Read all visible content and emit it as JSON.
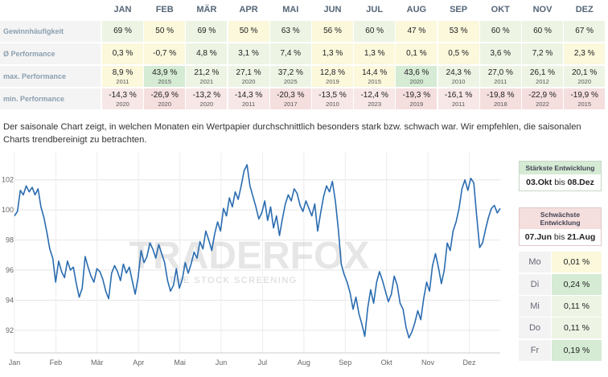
{
  "table": {
    "months": [
      "JAN",
      "FEB",
      "MÄR",
      "APR",
      "MAI",
      "JUN",
      "JUL",
      "AUG",
      "SEP",
      "OKT",
      "NOV",
      "DEZ"
    ],
    "rows": [
      {
        "label": "Gewinnhäufigkeit",
        "cells": [
          {
            "value": "69 %",
            "color": "#edf4e4"
          },
          {
            "value": "50 %",
            "color": "#fbf8dc"
          },
          {
            "value": "69 %",
            "color": "#edf4e4"
          },
          {
            "value": "50 %",
            "color": "#fbf8dc"
          },
          {
            "value": "63 %",
            "color": "#edf4e4"
          },
          {
            "value": "56 %",
            "color": "#fbf8dc"
          },
          {
            "value": "60 %",
            "color": "#edf4e4"
          },
          {
            "value": "47 %",
            "color": "#fbf8dc"
          },
          {
            "value": "53 %",
            "color": "#fbf8dc"
          },
          {
            "value": "60 %",
            "color": "#edf4e4"
          },
          {
            "value": "60 %",
            "color": "#edf4e4"
          },
          {
            "value": "67 %",
            "color": "#edf4e4"
          }
        ]
      },
      {
        "label": "Ø Performance",
        "cells": [
          {
            "value": "0,3 %",
            "color": "#fbf8dc"
          },
          {
            "value": "-0,7 %",
            "color": "#fbf8dc"
          },
          {
            "value": "4,8 %",
            "color": "#edf4e4"
          },
          {
            "value": "3,1 %",
            "color": "#edf4e4"
          },
          {
            "value": "7,4 %",
            "color": "#edf4e4"
          },
          {
            "value": "1,3 %",
            "color": "#fbf8dc"
          },
          {
            "value": "1,3 %",
            "color": "#fbf8dc"
          },
          {
            "value": "0,1 %",
            "color": "#fbf8dc"
          },
          {
            "value": "0,5 %",
            "color": "#fbf8dc"
          },
          {
            "value": "3,6 %",
            "color": "#edf4e4"
          },
          {
            "value": "7,2 %",
            "color": "#edf4e4"
          },
          {
            "value": "2,3 %",
            "color": "#fbf8dc"
          }
        ]
      },
      {
        "label": "max. Performance",
        "cells": [
          {
            "value": "8,9 %",
            "year": "2011",
            "color": "#fbf8dc"
          },
          {
            "value": "43,9 %",
            "year": "2015",
            "color": "#d5ebd4"
          },
          {
            "value": "21,2 %",
            "year": "2021",
            "color": "#edf4e4"
          },
          {
            "value": "27,1 %",
            "year": "2020",
            "color": "#edf4e4"
          },
          {
            "value": "37,2 %",
            "year": "2025",
            "color": "#edf4e4"
          },
          {
            "value": "12,8 %",
            "year": "2019",
            "color": "#fbf8dc"
          },
          {
            "value": "14,4 %",
            "year": "2015",
            "color": "#fbf8dc"
          },
          {
            "value": "43,6 %",
            "year": "2020",
            "color": "#d5ebd4"
          },
          {
            "value": "24,3 %",
            "year": "2010",
            "color": "#edf4e4"
          },
          {
            "value": "27,0 %",
            "year": "2011",
            "color": "#edf4e4"
          },
          {
            "value": "26,1 %",
            "year": "2012",
            "color": "#edf4e4"
          },
          {
            "value": "20,1 %",
            "year": "2020",
            "color": "#edf4e4"
          }
        ]
      },
      {
        "label": "min. Performance",
        "cells": [
          {
            "value": "-14,3 %",
            "year": "2020",
            "color": "#f7e7e7"
          },
          {
            "value": "-26,9 %",
            "year": "2020",
            "color": "#f5dede"
          },
          {
            "value": "-13,2 %",
            "year": "2020",
            "color": "#f7e7e7"
          },
          {
            "value": "-14,3 %",
            "year": "2011",
            "color": "#f7e7e7"
          },
          {
            "value": "-20,3 %",
            "year": "2017",
            "color": "#f5dede"
          },
          {
            "value": "-13,5 %",
            "year": "2010",
            "color": "#f7e7e7"
          },
          {
            "value": "-12,4 %",
            "year": "2023",
            "color": "#f7e7e7"
          },
          {
            "value": "-19,3 %",
            "year": "2019",
            "color": "#f5dede"
          },
          {
            "value": "-16,1 %",
            "year": "2011",
            "color": "#f7e7e7"
          },
          {
            "value": "-19,8 %",
            "year": "2018",
            "color": "#f5dede"
          },
          {
            "value": "-22,9 %",
            "year": "2022",
            "color": "#f5dede"
          },
          {
            "value": "-19,9 %",
            "year": "2015",
            "color": "#f5dede"
          }
        ]
      }
    ]
  },
  "description": "Der saisonale Chart zeigt, in welchen Monaten ein Wertpapier durchschnittlich besonders stark bzw. schwach war. Wir empfehlen, die saisonalen Charts trendbereinigt zu betrachten.",
  "watermark": {
    "brand": "TRADERFOX",
    "tagline": "THE STOCK SCREENING"
  },
  "strongest": {
    "title": "Stärkste Entwicklung",
    "from": "03.Okt",
    "sep": "bis",
    "to": "08.Dez",
    "header_color": "#d5ebd4"
  },
  "weakest": {
    "title": "Schwächste Entwicklung",
    "from": "07.Jun",
    "sep": "bis",
    "to": "21.Aug",
    "header_color": "#f5dede"
  },
  "weekdays": [
    {
      "name": "Mo",
      "value": "0,01 %",
      "color": "#fbf8dc"
    },
    {
      "name": "Di",
      "value": "0,24 %",
      "color": "#d5ebd4"
    },
    {
      "name": "Mi",
      "value": "0,11 %",
      "color": "#edf4e4"
    },
    {
      "name": "Do",
      "value": "0,11 %",
      "color": "#edf4e4"
    },
    {
      "name": "Fr",
      "value": "0,19 %",
      "color": "#d5ebd4"
    }
  ],
  "chart_data": {
    "type": "line",
    "x_labels": [
      "Jan",
      "Feb",
      "Mär",
      "Apr",
      "Mai",
      "Jun",
      "Jul",
      "Aug",
      "Sep",
      "Okt",
      "Nov",
      "Dez"
    ],
    "ylim": [
      90.5,
      103.8
    ],
    "y_ticks": [
      92,
      94,
      96,
      98,
      100,
      102
    ],
    "grid": true,
    "line_color": "#2a6cb0",
    "series": [
      {
        "values": [
          [
            0,
            99.6
          ],
          [
            1,
            99.9
          ],
          [
            2,
            101.3
          ],
          [
            3,
            101.0
          ],
          [
            4,
            101.6
          ],
          [
            5,
            101.2
          ],
          [
            6,
            101.5
          ],
          [
            7,
            101.0
          ],
          [
            8,
            101.4
          ],
          [
            9,
            100.2
          ],
          [
            10,
            99.5
          ],
          [
            11,
            98.5
          ],
          [
            12,
            97.4
          ],
          [
            13,
            96.8
          ],
          [
            14,
            95.2
          ],
          [
            15,
            96.6
          ],
          [
            16,
            95.9
          ],
          [
            17,
            95.5
          ],
          [
            18,
            96.6
          ],
          [
            19,
            96.0
          ],
          [
            20,
            96.2
          ],
          [
            21,
            95.1
          ],
          [
            22,
            94.2
          ],
          [
            23,
            94.8
          ],
          [
            24,
            96.9
          ],
          [
            25,
            96.2
          ],
          [
            26,
            95.6
          ],
          [
            27,
            95.2
          ],
          [
            28,
            96.1
          ],
          [
            29,
            95.9
          ],
          [
            30,
            95.4
          ],
          [
            31,
            94.6
          ],
          [
            32,
            94.1
          ],
          [
            33,
            95.8
          ],
          [
            34,
            96.3
          ],
          [
            35,
            95.9
          ],
          [
            36,
            95.3
          ],
          [
            37,
            96.4
          ],
          [
            38,
            95.8
          ],
          [
            39,
            96.2
          ],
          [
            40,
            95.3
          ],
          [
            41,
            94.4
          ],
          [
            42,
            95.5
          ],
          [
            43,
            97.3
          ],
          [
            44,
            96.5
          ],
          [
            45,
            96.9
          ],
          [
            46,
            97.8
          ],
          [
            47,
            97.4
          ],
          [
            48,
            96.8
          ],
          [
            49,
            97.7
          ],
          [
            50,
            97.1
          ],
          [
            51,
            96.5
          ],
          [
            52,
            95.3
          ],
          [
            53,
            94.6
          ],
          [
            54,
            95.0
          ],
          [
            55,
            96.1
          ],
          [
            56,
            94.8
          ],
          [
            57,
            95.4
          ],
          [
            58,
            96.5
          ],
          [
            59,
            95.8
          ],
          [
            60,
            96.4
          ],
          [
            61,
            97.2
          ],
          [
            62,
            96.8
          ],
          [
            63,
            97.9
          ],
          [
            64,
            97.4
          ],
          [
            65,
            98.6
          ],
          [
            66,
            98.0
          ],
          [
            67,
            97.3
          ],
          [
            68,
            98.4
          ],
          [
            69,
            99.2
          ],
          [
            70,
            98.6
          ],
          [
            71,
            100.1
          ],
          [
            72,
            99.6
          ],
          [
            73,
            100.8
          ],
          [
            74,
            100.2
          ],
          [
            75,
            101.2
          ],
          [
            76,
            100.7
          ],
          [
            77,
            101.6
          ],
          [
            78,
            102.6
          ],
          [
            79,
            103.0
          ],
          [
            80,
            101.6
          ],
          [
            81,
            100.9
          ],
          [
            82,
            100.2
          ],
          [
            83,
            99.4
          ],
          [
            84,
            99.8
          ],
          [
            85,
            100.6
          ],
          [
            86,
            99.3
          ],
          [
            87,
            100.2
          ],
          [
            88,
            98.8
          ],
          [
            89,
            99.6
          ],
          [
            90,
            98.3
          ],
          [
            91,
            99.4
          ],
          [
            92,
            100.4
          ],
          [
            93,
            101.0
          ],
          [
            94,
            100.6
          ],
          [
            95,
            101.4
          ],
          [
            96,
            101.1
          ],
          [
            97,
            100.3
          ],
          [
            98,
            99.9
          ],
          [
            99,
            100.6
          ],
          [
            100,
            100.1
          ],
          [
            101,
            99.6
          ],
          [
            102,
            100.4
          ],
          [
            103,
            98.6
          ],
          [
            104,
            99.8
          ],
          [
            105,
            100.9
          ],
          [
            106,
            101.6
          ],
          [
            107,
            101.2
          ],
          [
            108,
            101.9
          ],
          [
            109,
            100.6
          ],
          [
            110,
            98.7
          ],
          [
            111,
            96.4
          ],
          [
            112,
            95.7
          ],
          [
            113,
            95.2
          ],
          [
            114,
            94.5
          ],
          [
            115,
            93.4
          ],
          [
            116,
            94.2
          ],
          [
            117,
            93.1
          ],
          [
            118,
            92.4
          ],
          [
            119,
            91.6
          ],
          [
            120,
            93.5
          ],
          [
            121,
            94.7
          ],
          [
            122,
            93.8
          ],
          [
            123,
            95.2
          ],
          [
            124,
            95.9
          ],
          [
            125,
            95.3
          ],
          [
            126,
            94.6
          ],
          [
            127,
            93.9
          ],
          [
            128,
            94.4
          ],
          [
            129,
            95.6
          ],
          [
            130,
            95.0
          ],
          [
            131,
            93.8
          ],
          [
            132,
            93.4
          ],
          [
            133,
            92.2
          ],
          [
            134,
            91.5
          ],
          [
            135,
            91.9
          ],
          [
            136,
            92.5
          ],
          [
            137,
            93.3
          ],
          [
            138,
            92.7
          ],
          [
            139,
            94.1
          ],
          [
            140,
            95.2
          ],
          [
            141,
            94.6
          ],
          [
            142,
            96.3
          ],
          [
            143,
            97.1
          ],
          [
            144,
            96.2
          ],
          [
            145,
            95.1
          ],
          [
            146,
            96.0
          ],
          [
            147,
            97.8
          ],
          [
            148,
            97.3
          ],
          [
            149,
            98.6
          ],
          [
            150,
            99.2
          ],
          [
            151,
            100.1
          ],
          [
            152,
            101.4
          ],
          [
            153,
            102.0
          ],
          [
            154,
            101.3
          ],
          [
            155,
            102.1
          ],
          [
            156,
            101.8
          ],
          [
            157,
            99.6
          ],
          [
            158,
            97.5
          ],
          [
            159,
            97.8
          ],
          [
            160,
            98.7
          ],
          [
            161,
            99.5
          ],
          [
            162,
            100.1
          ],
          [
            163,
            100.3
          ],
          [
            164,
            99.8
          ],
          [
            165,
            100.1
          ]
        ]
      }
    ]
  }
}
